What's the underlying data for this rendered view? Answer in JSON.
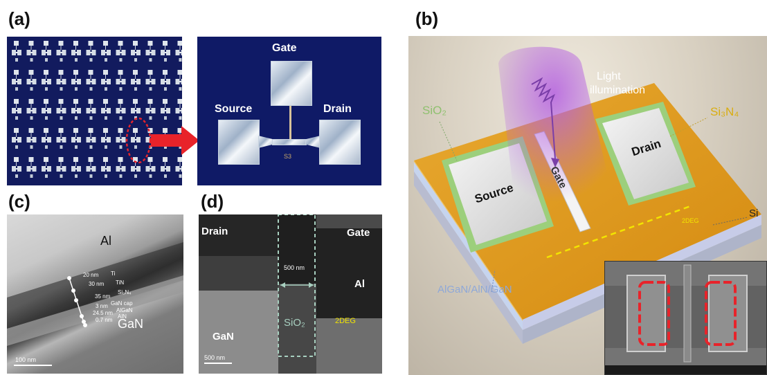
{
  "panels": {
    "a": {
      "letter": "(a)",
      "gate": "Gate",
      "source": "Source",
      "drain": "Drain",
      "chip_mark": "S3"
    },
    "b": {
      "letter": "(b)",
      "light1": "Light",
      "light2": "illumination",
      "sio2": "SiO₂",
      "si3n4": "Si₃N₄",
      "source": "Source",
      "gate": "Gate",
      "drain": "Drain",
      "si": "Si",
      "twodeg": "2DEG",
      "stack": "AlGaN/AlN/GaN"
    },
    "c": {
      "letter": "(c)",
      "al": "Al",
      "gan": "GaN",
      "scale": "100 nm",
      "layers": [
        {
          "thickness": "20 nm",
          "name": "Ti"
        },
        {
          "thickness": "30 nm",
          "name": "TiN"
        },
        {
          "thickness": "35 nm",
          "name": "Si₃N₄"
        },
        {
          "thickness": "3 nm",
          "name": "GaN cap"
        },
        {
          "thickness": "24.5 nm",
          "name": "AlGaN"
        },
        {
          "thickness": "0.7 nm",
          "name": "AlN"
        }
      ]
    },
    "d": {
      "letter": "(d)",
      "drain": "Drain",
      "gate": "Gate",
      "width": "500 nm",
      "al": "Al",
      "sio2": "SiO₂",
      "gan": "GaN",
      "twodeg": "2DEG",
      "scale": "500 nm"
    }
  },
  "colors": {
    "accent_red": "#e8232a",
    "sio2_green": "#a8d08d",
    "si3n4_gold": "#e0b400",
    "twodeg_yellow": "#f2e500",
    "stack_blue": "#8ea8d8"
  }
}
